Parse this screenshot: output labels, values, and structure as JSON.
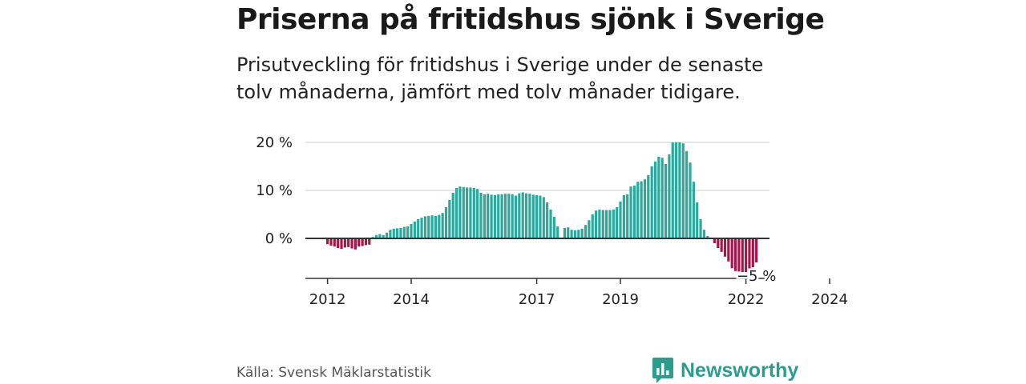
{
  "header": {
    "title": "Priserna på fritidshus sjönk i Sverige",
    "subtitle": "Prisutveckling för fritidshus i Sverige under de senaste tolv månaderna, jämfört med tolv månader tidigare."
  },
  "footer": {
    "source": "Källa: Svensk Mäklarstatistik",
    "brand": "Newsworthy"
  },
  "colors": {
    "positive": "#2aa99c",
    "negative": "#a5174a",
    "grid": "#dddddd",
    "axis": "#333333"
  },
  "chart_data": {
    "type": "bar",
    "title": "Priserna på fritidshus sjönk i Sverige",
    "ylabel": "",
    "xlabel": "",
    "ylim": [
      -8,
      20
    ],
    "y_ticks": [
      {
        "value": 20,
        "label": "20 %"
      },
      {
        "value": 10,
        "label": "10 %"
      },
      {
        "value": 0,
        "label": "0 %"
      }
    ],
    "x_ticks": [
      "2012",
      "2014",
      "2017",
      "2019",
      "2022",
      "2024"
    ],
    "start_month": "2012-01",
    "months_per_bar": 1,
    "annotation": {
      "label": "−5 %",
      "value": -5
    },
    "values": [
      -1.2,
      -1.5,
      -1.7,
      -2.0,
      -2.2,
      -1.9,
      -1.8,
      -2.1,
      -2.3,
      -1.7,
      -1.6,
      -1.4,
      -1.3,
      0.3,
      0.7,
      0.9,
      0.7,
      1.2,
      1.8,
      2.0,
      2.1,
      2.2,
      2.4,
      2.5,
      3.0,
      3.5,
      4.0,
      4.3,
      4.6,
      4.7,
      4.8,
      4.7,
      4.9,
      5.3,
      6.5,
      8.0,
      9.5,
      10.5,
      10.8,
      10.7,
      10.6,
      10.6,
      10.5,
      10.3,
      9.5,
      9.2,
      9.3,
      9.1,
      9.0,
      9.2,
      9.2,
      9.3,
      9.3,
      9.2,
      8.9,
      9.4,
      9.6,
      9.4,
      9.3,
      9.1,
      9.0,
      8.9,
      8.6,
      7.5,
      6.0,
      4.5,
      2.5,
      0,
      2.2,
      2.3,
      1.8,
      1.7,
      1.8,
      2.0,
      2.8,
      3.8,
      5.0,
      5.8,
      6.0,
      5.9,
      5.9,
      5.9,
      6.0,
      6.5,
      7.7,
      9.0,
      9.2,
      10.8,
      11.0,
      11.8,
      11.9,
      12.3,
      13.2,
      15.0,
      16.0,
      17.0,
      16.8,
      15.5,
      17.5,
      20.0,
      20.0,
      20.0,
      19.8,
      18.2,
      15.8,
      11.8,
      7.5,
      4.0,
      1.8,
      0.5,
      0,
      -1.0,
      -2.0,
      -2.8,
      -3.8,
      -4.8,
      -6.2,
      -6.8,
      -6.9,
      -7.0,
      -7.0,
      -6.5,
      -6.0,
      -5.0
    ]
  }
}
